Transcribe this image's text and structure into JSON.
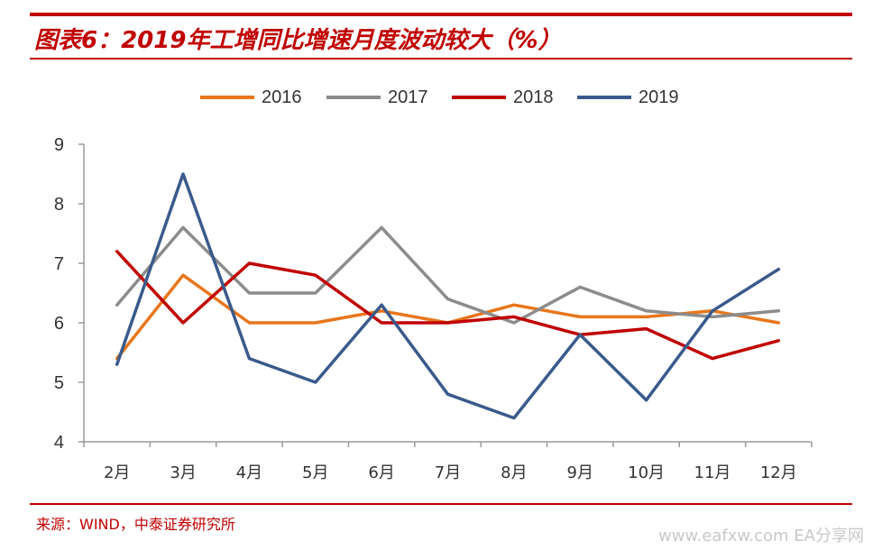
{
  "header": {
    "title": "图表6：2019年工增同比增速月度波动较大（%）"
  },
  "footer": {
    "source": "来源：WIND，中泰证券研究所",
    "watermark": "www.eafxw.com EA分享网"
  },
  "chart_data": {
    "type": "line",
    "categories": [
      "2月",
      "3月",
      "4月",
      "5月",
      "6月",
      "7月",
      "8月",
      "9月",
      "10月",
      "11月",
      "12月"
    ],
    "yticks": [
      "4",
      "5",
      "6",
      "7",
      "8",
      "9"
    ],
    "ylim": [
      4,
      9
    ],
    "grid": false,
    "legend_position": "top",
    "series": [
      {
        "name": "2016",
        "color": "#e8761b",
        "values": [
          5.4,
          6.8,
          6.0,
          6.0,
          6.2,
          6.0,
          6.3,
          6.1,
          6.1,
          6.2,
          6.0
        ]
      },
      {
        "name": "2017",
        "color": "#8c8c8c",
        "values": [
          6.3,
          7.6,
          6.5,
          6.5,
          7.6,
          6.4,
          6.0,
          6.6,
          6.2,
          6.1,
          6.2
        ]
      },
      {
        "name": "2018",
        "color": "#c00000",
        "values": [
          7.2,
          6.0,
          7.0,
          6.8,
          6.0,
          6.0,
          6.1,
          5.8,
          5.9,
          5.4,
          5.7
        ]
      },
      {
        "name": "2019",
        "color": "#3a5a8c",
        "values": [
          5.3,
          8.5,
          5.4,
          5.0,
          6.3,
          4.8,
          4.4,
          5.8,
          4.7,
          6.2,
          6.9
        ]
      }
    ]
  }
}
